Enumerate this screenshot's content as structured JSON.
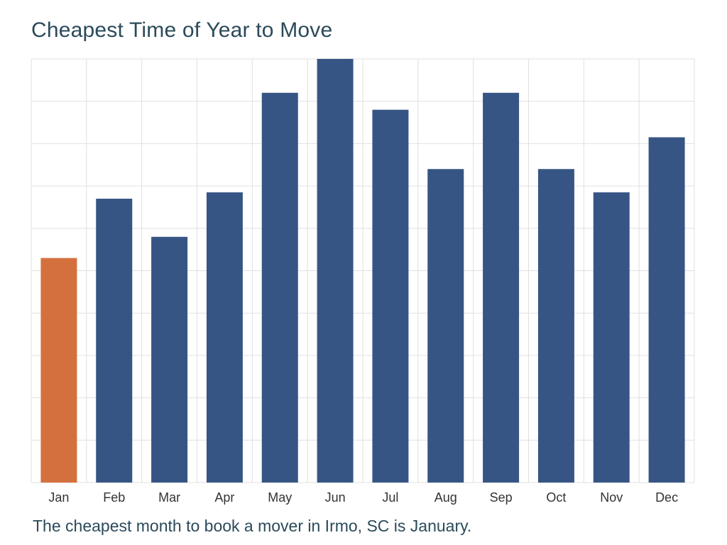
{
  "title": "Cheapest Time of Year to Move",
  "caption": "The cheapest month to book a mover in Irmo, SC is January.",
  "colors": {
    "highlight": "#d4703d",
    "bar": "#375584",
    "grid": "#e0e0e0",
    "text": "#2b4a5a"
  },
  "chart_data": {
    "type": "bar",
    "title": "Cheapest Time of Year to Move",
    "xlabel": "",
    "ylabel": "",
    "categories": [
      "Jan",
      "Feb",
      "Mar",
      "Apr",
      "May",
      "Jun",
      "Jul",
      "Aug",
      "Sep",
      "Oct",
      "Nov",
      "Dec"
    ],
    "values": [
      53,
      67,
      58,
      68.5,
      92,
      100,
      88,
      74,
      92,
      74,
      68.5,
      81.5
    ],
    "highlight_category": "Jan",
    "ylim": [
      0,
      100
    ],
    "y_tick_labels_visible": false,
    "grid": true
  }
}
